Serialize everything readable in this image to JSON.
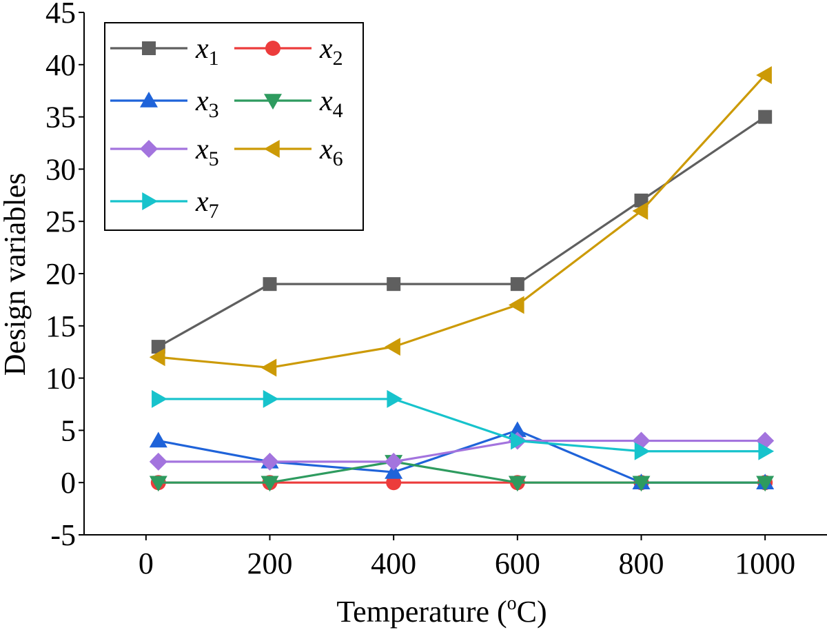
{
  "chart_data": {
    "type": "line",
    "title": "",
    "xlabel": "Temperature (",
    "xlabel_sup": "o",
    "xlabel_end": "C)",
    "ylabel": "Design variables",
    "xlim": [
      -100,
      1100
    ],
    "ylim": [
      -5,
      45
    ],
    "xticks": [
      0,
      200,
      400,
      600,
      800,
      1000
    ],
    "yticks": [
      -5,
      0,
      5,
      10,
      15,
      20,
      25,
      30,
      35,
      40,
      45
    ],
    "x": [
      20,
      200,
      400,
      600,
      800,
      1000
    ],
    "series": [
      {
        "name": "x",
        "sub": "1",
        "color": "#5f5f5f",
        "marker": "square",
        "values": [
          13,
          19,
          19,
          19,
          27,
          35
        ]
      },
      {
        "name": "x",
        "sub": "2",
        "color": "#ec3c3c",
        "marker": "circle",
        "values": [
          0,
          0,
          0,
          0,
          0,
          0
        ]
      },
      {
        "name": "x",
        "sub": "3",
        "color": "#1f63d9",
        "marker": "triangle-up",
        "values": [
          4,
          2,
          1,
          5,
          0,
          0
        ]
      },
      {
        "name": "x",
        "sub": "4",
        "color": "#2e9b5f",
        "marker": "triangle-down",
        "values": [
          0,
          0,
          2,
          0,
          0,
          0
        ]
      },
      {
        "name": "x",
        "sub": "5",
        "color": "#a374de",
        "marker": "diamond",
        "values": [
          2,
          2,
          2,
          4,
          4,
          4
        ]
      },
      {
        "name": "x",
        "sub": "6",
        "color": "#cc9a06",
        "marker": "triangle-left",
        "values": [
          12,
          11,
          13,
          17,
          26,
          39
        ]
      },
      {
        "name": "x",
        "sub": "7",
        "color": "#17c3cc",
        "marker": "triangle-right",
        "values": [
          8,
          8,
          8,
          4,
          3,
          3
        ]
      }
    ],
    "legend_position": "top-left"
  }
}
